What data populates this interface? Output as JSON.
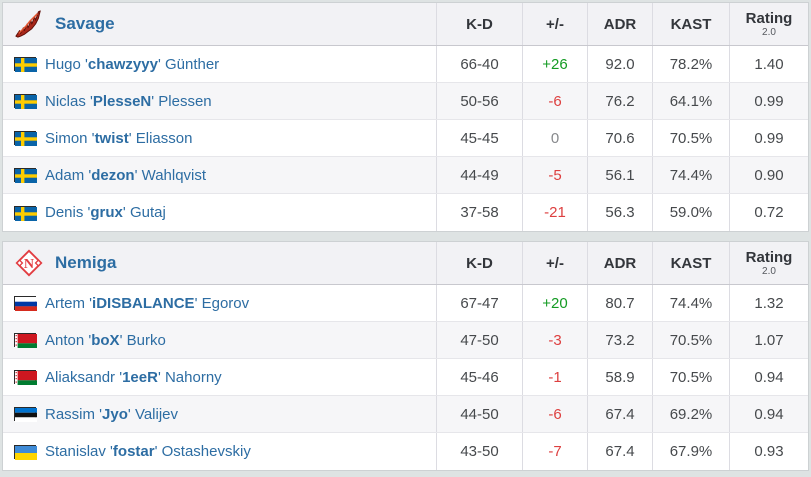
{
  "quote_char": "'",
  "colors": {
    "page_bg": "#dee3e3",
    "link_blue": "#2d6da3",
    "stat_text": "#46494c",
    "positive_green": "#149b23",
    "negative_red": "#dd3f3f",
    "neutral_gray": "#87898c",
    "header_bg": "#f2f2f5",
    "alt_row_bg": "#f6f6f8"
  },
  "columns": {
    "kd": "K-D",
    "plus_minus": "+/-",
    "adr": "ADR",
    "kast": "KAST",
    "rating": "Rating",
    "rating_version": "2.0"
  },
  "teams": [
    {
      "name": "Savage",
      "logo": "savage",
      "logo_icon": "savage-team-logo",
      "players": [
        {
          "flag": "sweden",
          "first": "Hugo",
          "nick": "chawzyyy",
          "last": "Günther",
          "kd": "66-40",
          "plus_minus": "+26",
          "adr": "92.0",
          "kast": "78.2%",
          "rating": "1.40"
        },
        {
          "flag": "sweden",
          "first": "Niclas",
          "nick": "PlesseN",
          "last": "Plessen",
          "kd": "50-56",
          "plus_minus": "-6",
          "adr": "76.2",
          "kast": "64.1%",
          "rating": "0.99"
        },
        {
          "flag": "sweden",
          "first": "Simon",
          "nick": "twist",
          "last": "Eliasson",
          "kd": "45-45",
          "plus_minus": "0",
          "adr": "70.6",
          "kast": "70.5%",
          "rating": "0.99"
        },
        {
          "flag": "sweden",
          "first": "Adam",
          "nick": "dezon",
          "last": "Wahlqvist",
          "kd": "44-49",
          "plus_minus": "-5",
          "adr": "56.1",
          "kast": "74.4%",
          "rating": "0.90"
        },
        {
          "flag": "sweden",
          "first": "Denis",
          "nick": "grux",
          "last": "Gutaj",
          "kd": "37-58",
          "plus_minus": "-21",
          "adr": "56.3",
          "kast": "59.0%",
          "rating": "0.72"
        }
      ]
    },
    {
      "name": "Nemiga",
      "logo": "nemiga",
      "logo_icon": "nemiga-team-logo",
      "players": [
        {
          "flag": "russia",
          "first": "Artem",
          "nick": "iDISBALANCE",
          "last": "Egorov",
          "kd": "67-47",
          "plus_minus": "+20",
          "adr": "80.7",
          "kast": "74.4%",
          "rating": "1.32"
        },
        {
          "flag": "belarus",
          "first": "Anton",
          "nick": "boX",
          "last": "Burko",
          "kd": "47-50",
          "plus_minus": "-3",
          "adr": "73.2",
          "kast": "70.5%",
          "rating": "1.07"
        },
        {
          "flag": "belarus",
          "first": "Aliaksandr",
          "nick": "1eeR",
          "last": "Nahorny",
          "kd": "45-46",
          "plus_minus": "-1",
          "adr": "58.9",
          "kast": "70.5%",
          "rating": "0.94"
        },
        {
          "flag": "estonia",
          "first": "Rassim",
          "nick": "Jyo",
          "last": "Valijev",
          "kd": "44-50",
          "plus_minus": "-6",
          "adr": "67.4",
          "kast": "69.2%",
          "rating": "0.94"
        },
        {
          "flag": "ukraine",
          "first": "Stanislav",
          "nick": "fostar",
          "last": "Ostashevskiy",
          "kd": "43-50",
          "plus_minus": "-7",
          "adr": "67.4",
          "kast": "67.9%",
          "rating": "0.93"
        }
      ]
    }
  ]
}
